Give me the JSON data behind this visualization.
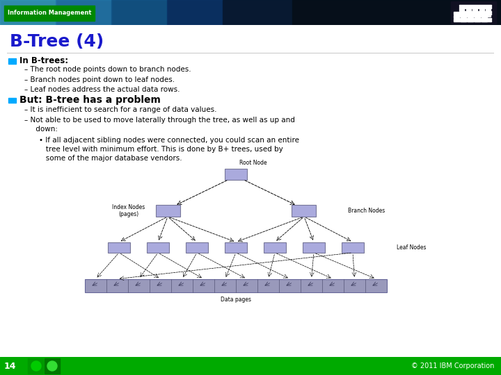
{
  "title": "B-Tree (4)",
  "title_color": "#1a1aCC",
  "title_fontsize": 18,
  "bg_color": "#FFFFFF",
  "footer_bg": "#00AA00",
  "footer_text": "© 2011 IBM Corporation",
  "footer_num": "14",
  "bullet_color": "#00AAFF",
  "bullet1_header": "In B-trees:",
  "bullet1_items": [
    "– The root node points down to branch nodes.",
    "– Branch nodes point down to leaf nodes.",
    "– Leaf nodes address the actual data rows."
  ],
  "bullet2_header": "But: B-tree has a problem",
  "bullet2_items": [
    "– It is inefficient to search for a range of data values.",
    "– Not able to be used to move laterally through the tree, as well as up and"
  ],
  "bullet2_cont": "     down:",
  "bullet3_item": "• If all adjacent sibling nodes were connected, you could scan an entire",
  "bullet3_item2": "   tree level with minimum effort. This is done by B+ trees, used by",
  "bullet3_item3": "   some of the major database vendors.",
  "node_color": "#AAAADD",
  "node_border": "#777799",
  "data_bar_color": "#9999BB",
  "root_label": "Root Node",
  "branch_label": "Branch Nodes",
  "leaf_label": "Leaf Nodes",
  "index_label1": "Index Nodes",
  "index_label2": "(pages)",
  "data_label": "Data pages",
  "header_text": "Information Management"
}
